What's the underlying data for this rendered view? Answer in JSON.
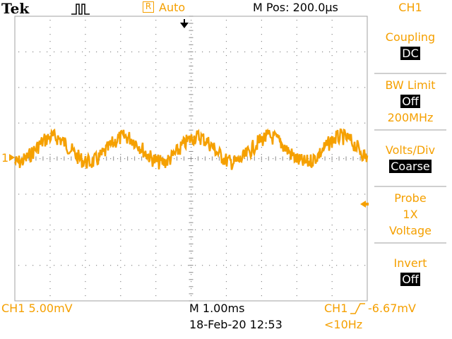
{
  "header": {
    "brand": "Tek",
    "trigger_mode": "Auto",
    "trigger_badge": "R",
    "m_pos_label": "M Pos: 200.0µs",
    "channel_menu_title": "CH1"
  },
  "menu": {
    "coupling": {
      "label": "Coupling",
      "value": "DC"
    },
    "bw_limit": {
      "label": "BW Limit",
      "value": "Off",
      "sub": "200MHz"
    },
    "volts_div": {
      "label": "Volts/Div",
      "value": "Coarse"
    },
    "probe": {
      "label": "Probe",
      "value1": "1X",
      "value2": "Voltage"
    },
    "invert": {
      "label": "Invert",
      "value": "Off"
    }
  },
  "footer": {
    "ch1_scale": "CH1  5.00mV",
    "timebase": "M 1.00ms",
    "date_time": "18-Feb-20 12:53",
    "trigger_source": "CH1",
    "trigger_level": "-6.67mV",
    "freq": "<10Hz"
  },
  "markers": {
    "ch1_ref": "1"
  },
  "colors": {
    "trace": "#f5a000",
    "grid": "#9a9a9a",
    "text_orange": "#f5a000"
  },
  "icons": {
    "acquire": "pulse-icon",
    "trigger_pos": "down-arrow-icon",
    "trigger_level": "left-arrow-icon",
    "edge": "rising-edge-icon"
  }
}
